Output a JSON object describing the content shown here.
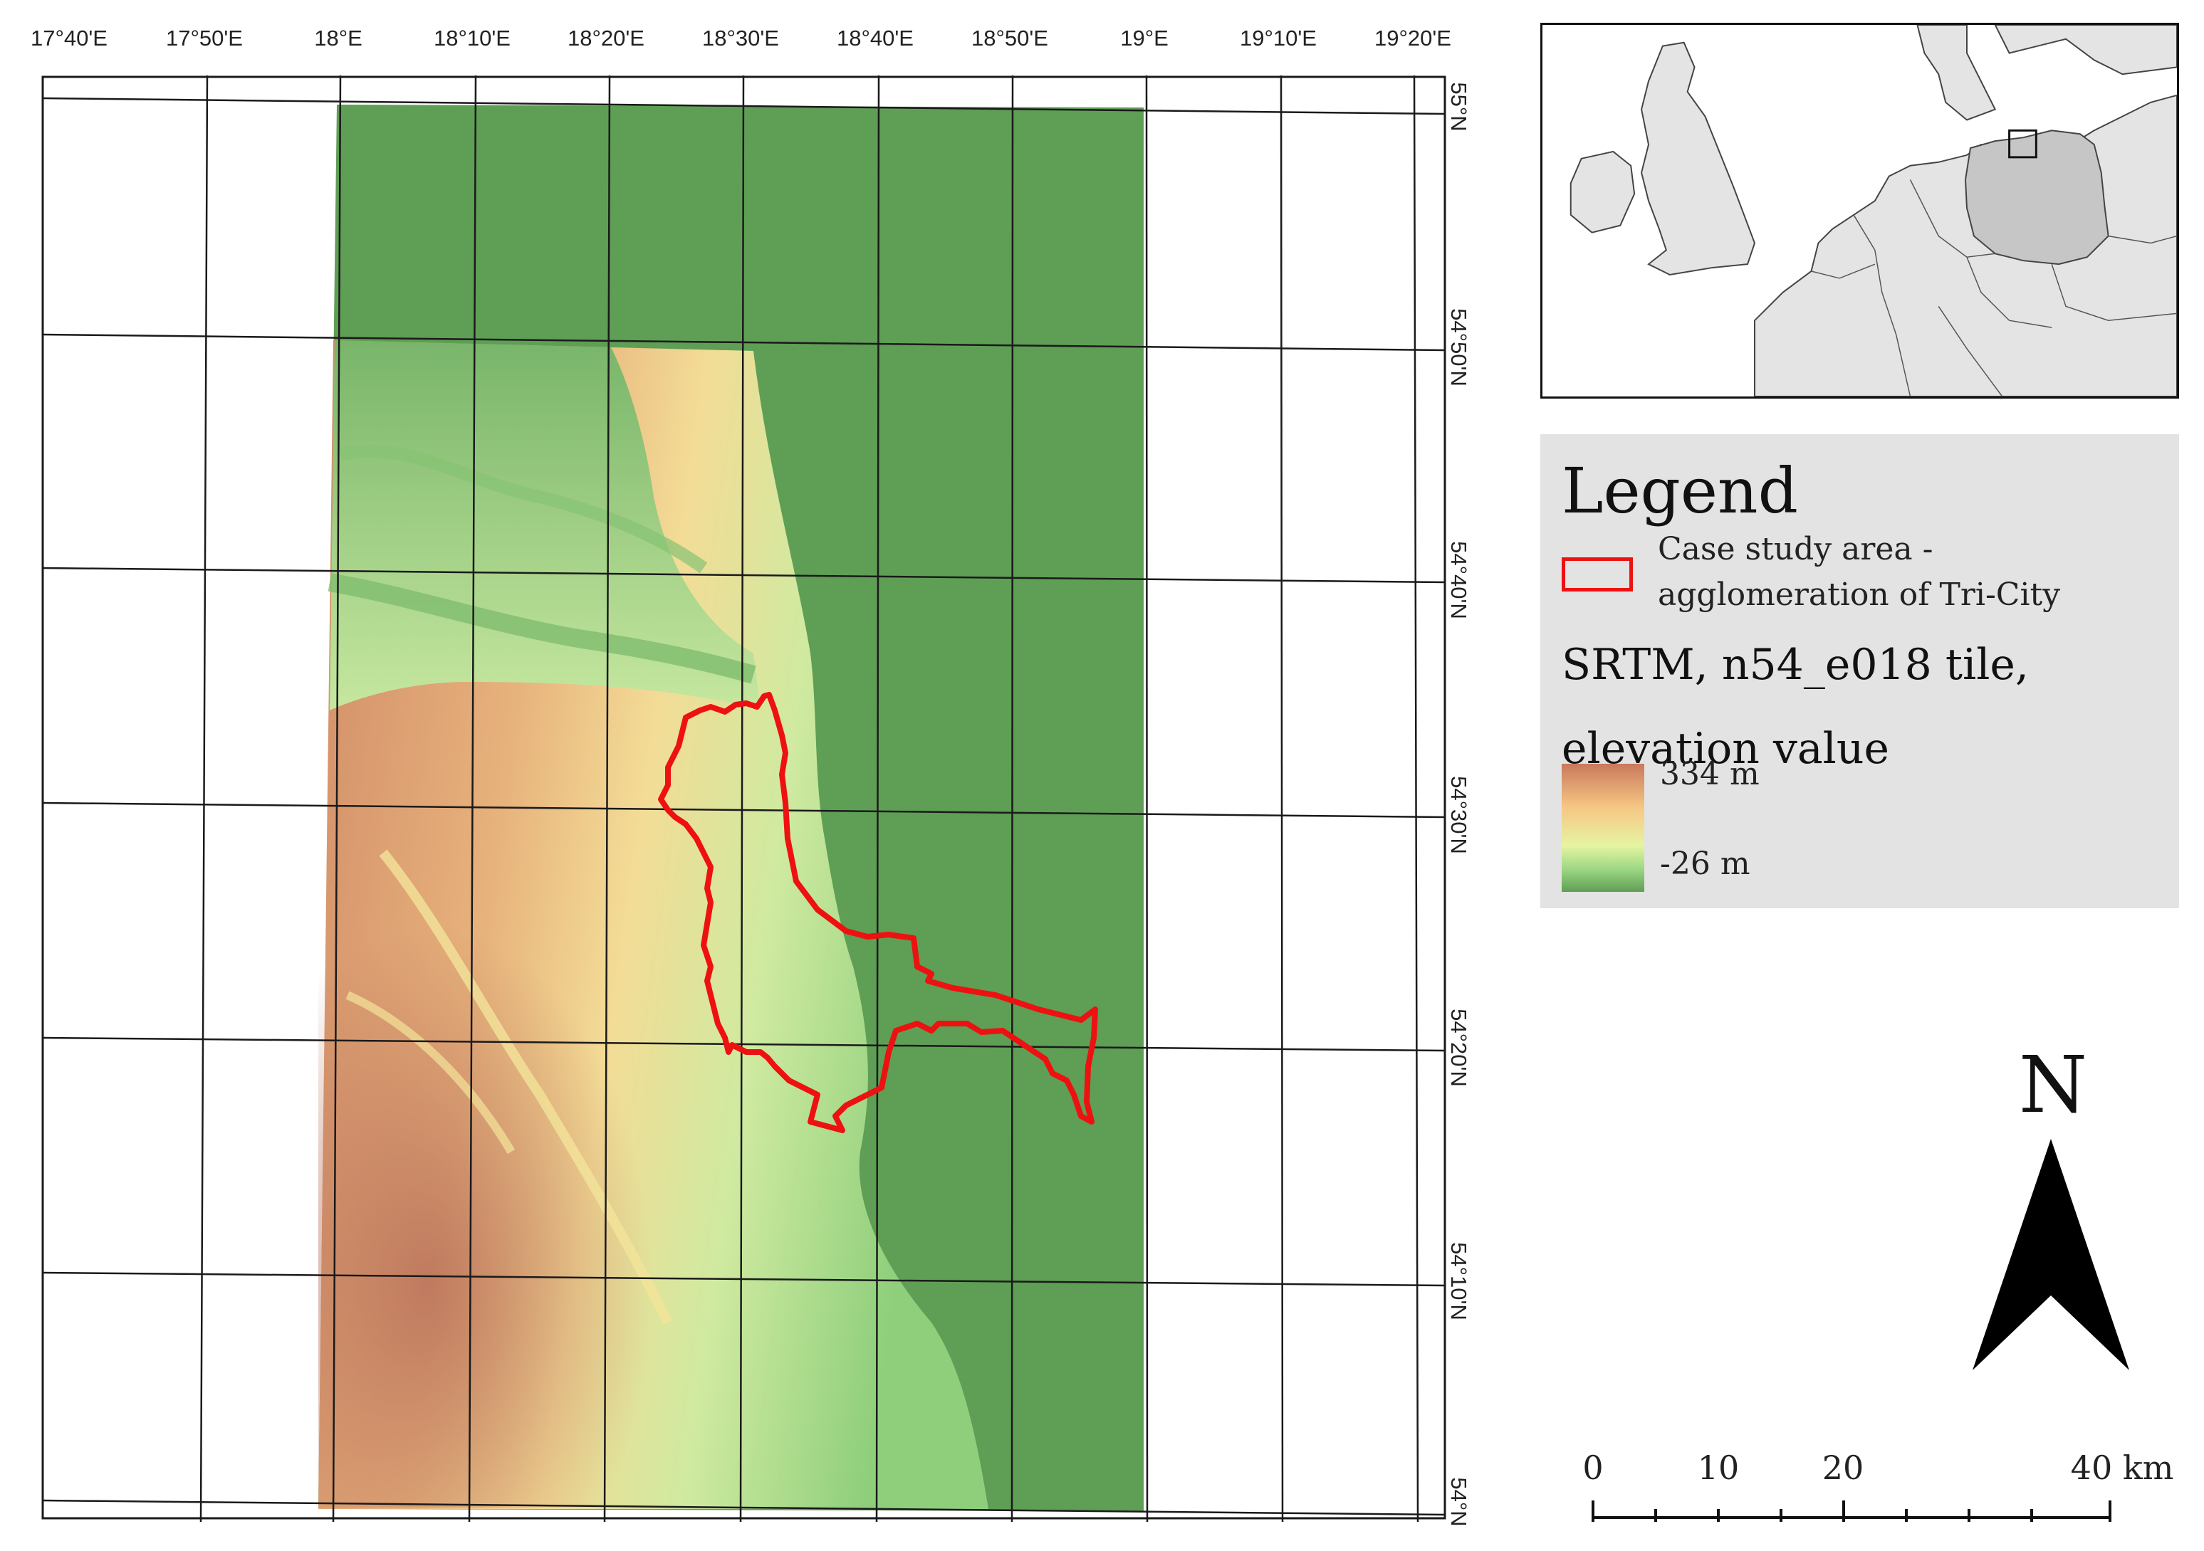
{
  "lon_labels": [
    "17°40'E",
    "17°50'E",
    "18°E",
    "18°10'E",
    "18°20'E",
    "18°30'E",
    "18°40'E",
    "18°50'E",
    "19°E",
    "19°10'E",
    "19°20'E"
  ],
  "lat_labels": [
    "55°N",
    "54°50'N",
    "54°40'N",
    "54°30'N",
    "54°20'N",
    "54°10'N",
    "54°N"
  ],
  "legend": {
    "title": "Legend",
    "case_study": "Case study area - agglomeration of Tri-City",
    "srtm_label": "SRTM, n54_e018 tile, elevation value",
    "ramp_max": "334 m",
    "ramp_min": "-26 m"
  },
  "north_label": "N",
  "scale_labels": [
    "0",
    "10",
    "20",
    "40 km"
  ],
  "colors": {
    "sea": "#5f9e55",
    "low": "#a8db8a",
    "mid": "#f2e9a0",
    "high": "#c9795c",
    "boundary": "#ee1111",
    "inset_land": "#e4e4e4",
    "inset_poland": "#c6c6c6"
  }
}
